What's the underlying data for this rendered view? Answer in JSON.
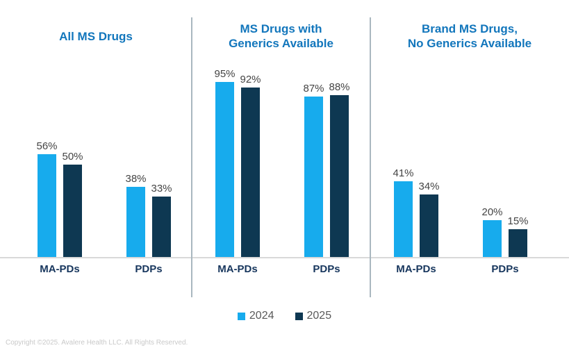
{
  "page": {
    "copyright": "Copyright ©2025. Avalere Health LLC. All Rights Reserved."
  },
  "colors": {
    "title_blue": "#1276BC",
    "series_2024": "#17ABED",
    "series_2025": "#0E3852",
    "category_label": "#17365D",
    "data_label": "#444444",
    "legend_text": "#595959",
    "axis_line": "#D9D9D9",
    "divider": "#A9B7BF",
    "copyright_text": "#C9C9C9",
    "background": "#FFFFFF"
  },
  "legend": {
    "items": [
      {
        "label": "2024",
        "color": "#17ABED"
      },
      {
        "label": "2025",
        "color": "#0E3852"
      }
    ]
  },
  "chart_data": [
    {
      "type": "bar",
      "title": "All MS Drugs",
      "categories": [
        "MA-PDs",
        "PDPs"
      ],
      "series": [
        {
          "name": "2024",
          "values": [
            56,
            38
          ],
          "labels": [
            "56%",
            "38%"
          ]
        },
        {
          "name": "2025",
          "values": [
            50,
            33
          ],
          "labels": [
            "50%",
            "33%"
          ]
        }
      ],
      "value_format": "percent",
      "ylim": [
        0,
        100
      ],
      "grid": false,
      "legend_position": "bottom-shared"
    },
    {
      "type": "bar",
      "title": "MS Drugs with\nGenerics Available",
      "categories": [
        "MA-PDs",
        "PDPs"
      ],
      "series": [
        {
          "name": "2024",
          "values": [
            95,
            87
          ],
          "labels": [
            "95%",
            "87%"
          ]
        },
        {
          "name": "2025",
          "values": [
            92,
            88
          ],
          "labels": [
            "92%",
            "88%"
          ]
        }
      ],
      "value_format": "percent",
      "ylim": [
        0,
        100
      ],
      "grid": false,
      "legend_position": "bottom-shared"
    },
    {
      "type": "bar",
      "title": "Brand MS Drugs,\nNo Generics Available",
      "categories": [
        "MA-PDs",
        "PDPs"
      ],
      "series": [
        {
          "name": "2024",
          "values": [
            41,
            20
          ],
          "labels": [
            "41%",
            "20%"
          ]
        },
        {
          "name": "2025",
          "values": [
            34,
            15
          ],
          "labels": [
            "34%",
            "15%"
          ]
        }
      ],
      "value_format": "percent",
      "ylim": [
        0,
        100
      ],
      "grid": false,
      "legend_position": "bottom-shared"
    }
  ]
}
